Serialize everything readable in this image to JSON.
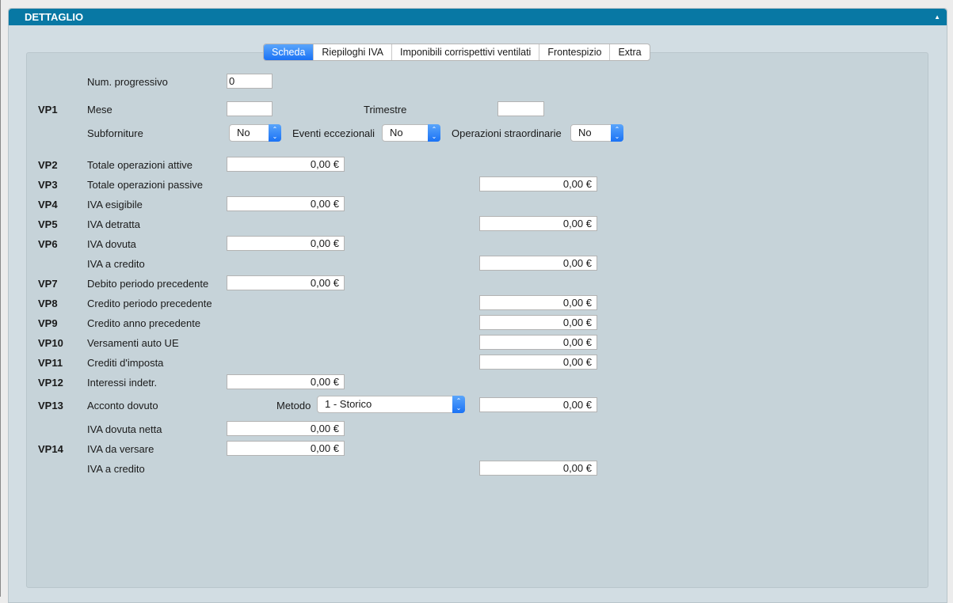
{
  "panel": {
    "title": "DETTAGLIO",
    "collapse_icon": "triangle-up-icon"
  },
  "tabs": [
    "Scheda",
    "Riepiloghi IVA",
    "Imponibili corrispettivi ventilati",
    "Frontespizio",
    "Extra"
  ],
  "active_tab": "Scheda",
  "num_progressivo": {
    "label": "Num. progressivo",
    "value": "0"
  },
  "vp1": {
    "code": "VP1",
    "mese_label": "Mese",
    "mese": "",
    "trimestre_label": "Trimestre",
    "trimestre": "",
    "subforniture_label": "Subforniture",
    "subforniture": "No",
    "eventi_label": "Eventi eccezionali",
    "eventi": "No",
    "operazioni_label": "Operazioni straordinarie",
    "operazioni": "No"
  },
  "rows": [
    {
      "code": "VP2",
      "label": "Totale operazioni attive",
      "side": "left",
      "value": "0,00 €"
    },
    {
      "code": "VP3",
      "label": "Totale operazioni passive",
      "side": "right",
      "value": "0,00 €"
    },
    {
      "code": "VP4",
      "label": "IVA esigibile",
      "side": "left",
      "value": "0,00 €"
    },
    {
      "code": "VP5",
      "label": "IVA detratta",
      "side": "right",
      "value": "0,00 €"
    },
    {
      "code": "VP6",
      "label": "IVA dovuta",
      "side": "left",
      "value": "0,00 €"
    },
    {
      "code": "",
      "label": "IVA a credito",
      "side": "right",
      "value": "0,00 €"
    },
    {
      "code": "VP7",
      "label": "Debito periodo precedente",
      "side": "left",
      "value": "0,00 €"
    },
    {
      "code": "VP8",
      "label": "Credito periodo precedente",
      "side": "right",
      "value": "0,00 €"
    },
    {
      "code": "VP9",
      "label": "Credito anno precedente",
      "side": "right",
      "value": "0,00 €"
    },
    {
      "code": "VP10",
      "label": "Versamenti auto UE",
      "side": "right",
      "value": "0,00 €"
    },
    {
      "code": "VP11",
      "label": "Crediti d'imposta",
      "side": "right",
      "value": "0,00 €"
    },
    {
      "code": "VP12",
      "label": "Interessi indetr.",
      "side": "left",
      "value": "0,00 €"
    }
  ],
  "vp13": {
    "code": "VP13",
    "label": "Acconto dovuto",
    "metodo_label": "Metodo",
    "metodo": "1 - Storico",
    "value": "0,00 €"
  },
  "rows2": [
    {
      "code": "",
      "label": "IVA dovuta netta",
      "side": "left",
      "value": "0,00 €"
    },
    {
      "code": "VP14",
      "label": "IVA da versare",
      "side": "left",
      "value": "0,00 €"
    },
    {
      "code": "",
      "label": "IVA a credito",
      "side": "right",
      "value": "0,00 €"
    }
  ]
}
